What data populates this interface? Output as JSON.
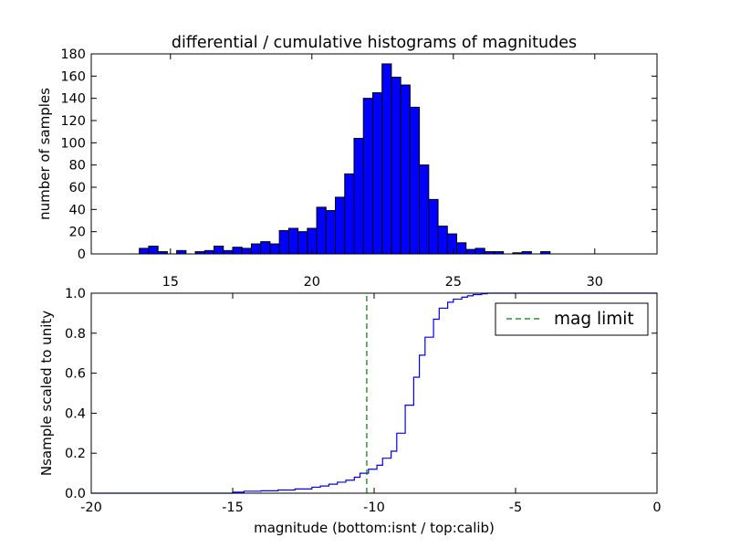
{
  "chart_data": [
    {
      "type": "bar",
      "title": "differential / cumulative histograms of magnitudes",
      "xlabel": "",
      "ylabel": "number of samples",
      "xlim": [
        12.2,
        32.2
      ],
      "ylim": [
        0,
        180
      ],
      "xticks": [
        15,
        20,
        25,
        30
      ],
      "yticks": [
        0,
        20,
        40,
        60,
        80,
        100,
        120,
        140,
        160,
        180
      ],
      "xtick_position": "top",
      "bar_color": "#0000ff",
      "bin_width": 0.33,
      "bin_start": 13.9,
      "values": [
        5,
        7,
        2,
        0,
        3,
        0,
        2,
        3,
        7,
        3,
        6,
        5,
        9,
        11,
        9,
        21,
        23,
        20,
        23,
        42,
        39,
        51,
        72,
        104,
        140,
        145,
        171,
        159,
        152,
        132,
        80,
        49,
        25,
        18,
        10,
        4,
        5,
        2,
        2,
        0,
        1,
        2,
        0,
        2
      ],
      "grid": false
    },
    {
      "type": "line",
      "drawstyle": "steps",
      "xlabel": "magnitude (bottom:isnt / top:calib)",
      "ylabel": "Nsample scaled to unity",
      "xlim": [
        -20,
        0
      ],
      "ylim": [
        0,
        1.0
      ],
      "xticks": [
        -20,
        -15,
        -10,
        -5,
        0
      ],
      "ytick_labels": [
        "0.0",
        "0.2",
        "0.4",
        "0.6",
        "0.8",
        "1.0"
      ],
      "yticks": [
        0,
        0.2,
        0.4,
        0.6,
        0.8,
        1.0
      ],
      "series": [
        {
          "color": "#0000ff",
          "x": [
            -20,
            -15.0,
            -14.6,
            -14.0,
            -13.4,
            -12.8,
            -12.2,
            -11.9,
            -11.6,
            -11.3,
            -11.0,
            -10.7,
            -10.5,
            -10.2,
            -9.9,
            -9.7,
            -9.4,
            -9.2,
            -8.9,
            -8.6,
            -8.4,
            -8.2,
            -7.9,
            -7.7,
            -7.4,
            -7.2,
            -6.9,
            -6.7,
            -6.5,
            -6.2,
            -6.0,
            -5.5,
            -5.0,
            -4.5
          ],
          "y": [
            0.0,
            0.005,
            0.01,
            0.012,
            0.016,
            0.021,
            0.03,
            0.036,
            0.045,
            0.055,
            0.065,
            0.08,
            0.1,
            0.12,
            0.14,
            0.175,
            0.21,
            0.3,
            0.44,
            0.58,
            0.69,
            0.78,
            0.87,
            0.925,
            0.955,
            0.97,
            0.98,
            0.987,
            0.993,
            0.997,
            1.0,
            1.0,
            1.0,
            1.0
          ]
        },
        {
          "name": "mag limit",
          "color": "#008000",
          "linestyle": "dashed",
          "x": [
            -10.26,
            -10.26
          ],
          "y": [
            0.0,
            1.0
          ]
        }
      ],
      "legend": {
        "labels": [
          "mag limit"
        ],
        "placement": "top-right"
      },
      "grid": false
    }
  ]
}
